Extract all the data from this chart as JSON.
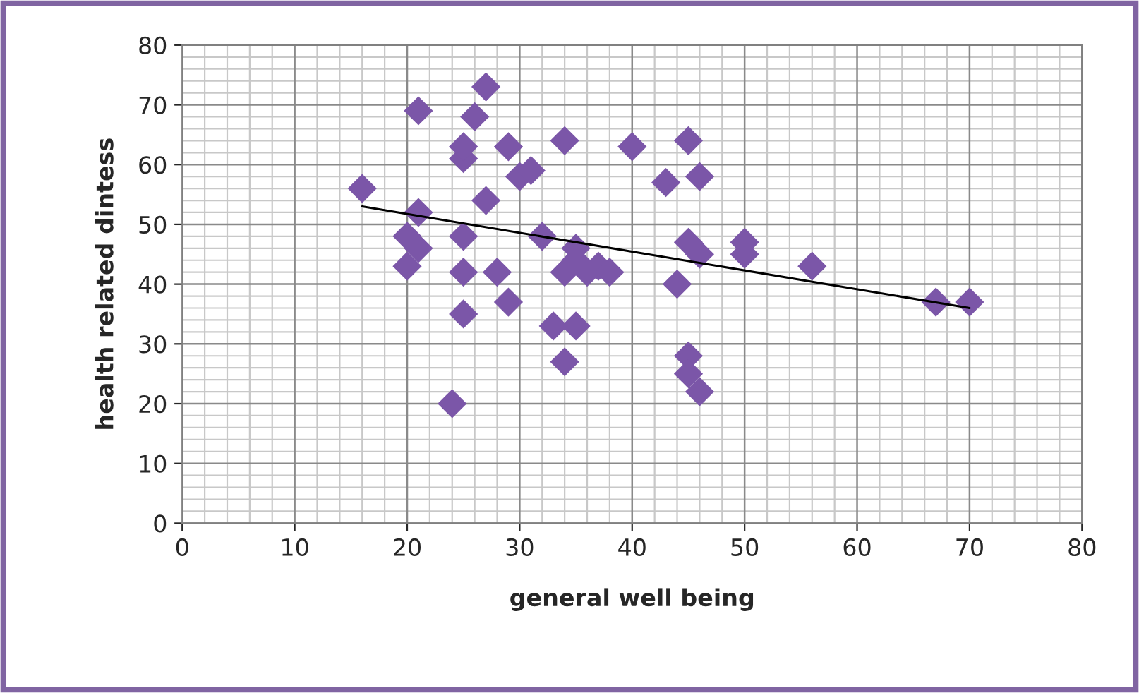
{
  "chart_data": {
    "type": "scatter",
    "xlabel": "general well being",
    "ylabel": "health related dintess",
    "xlim": [
      0,
      80
    ],
    "ylim": [
      0,
      80
    ],
    "xticks": [
      0,
      10,
      20,
      30,
      40,
      50,
      60,
      70,
      80
    ],
    "yticks": [
      0,
      10,
      20,
      30,
      40,
      50,
      60,
      70,
      80
    ],
    "grid": true,
    "series": [
      {
        "color": "#7b56a8",
        "marker": "diamond",
        "x": [
          16,
          21,
          21,
          20,
          21,
          20,
          25,
          25,
          25,
          24,
          25,
          25,
          26,
          27,
          27,
          29,
          29,
          28,
          30,
          31,
          32,
          33,
          34,
          34,
          34,
          35,
          35,
          35,
          36,
          37,
          38,
          40,
          43,
          44,
          45,
          46,
          45,
          46,
          45,
          45,
          46,
          50,
          50,
          56,
          67,
          70
        ],
        "values": [
          56,
          69,
          52,
          48,
          46,
          43,
          48,
          42,
          35,
          20,
          61,
          63,
          68,
          73,
          54,
          63,
          37,
          42,
          58,
          59,
          48,
          33,
          64,
          42,
          27,
          46,
          44,
          33,
          42,
          43,
          42,
          63,
          57,
          40,
          64,
          58,
          47,
          45,
          28,
          25,
          22,
          47,
          45,
          43,
          37,
          37
        ]
      },
      {
        "type": "line",
        "marker": "none",
        "color": "#000000",
        "x": [
          16,
          70
        ],
        "values": [
          53,
          36
        ]
      }
    ]
  }
}
